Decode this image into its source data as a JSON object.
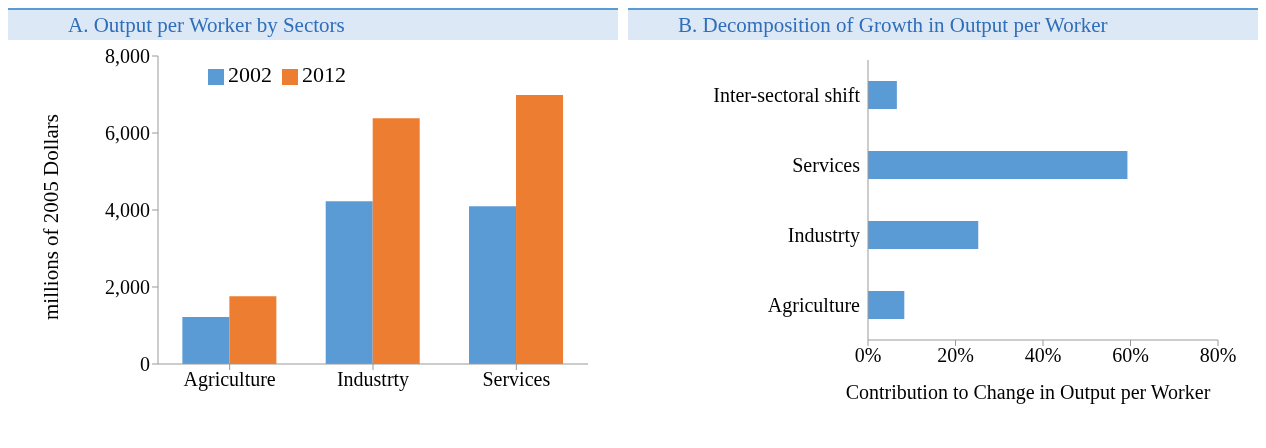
{
  "chart_data": [
    {
      "type": "bar",
      "title": "A.   Output per Worker by Sectors",
      "ylabel": "millions of 2005 Dollars",
      "categories": [
        "Agriculture",
        "Industrty",
        "Services"
      ],
      "series": [
        {
          "name": "2002",
          "color": "#5b9bd5",
          "values": [
            1220,
            4230,
            4100
          ]
        },
        {
          "name": "2012",
          "color": "#ed7d31",
          "values": [
            1760,
            6380,
            6990
          ]
        }
      ],
      "ylim": [
        0,
        8000
      ],
      "yticks": [
        0,
        {
          "value": 2000,
          "label": "2,000"
        },
        {
          "value": 4000,
          "label": "4,000"
        },
        {
          "value": 6000,
          "label": "6,000"
        },
        {
          "value": 8000,
          "label": "8,000"
        }
      ],
      "legend": "top left"
    },
    {
      "type": "bar",
      "orientation": "horizontal",
      "title": "B.   Decomposition of Growth in Output per Worker",
      "xlabel": "Contribution to  Change in Output per Worker",
      "categories": [
        "Inter-sectoral shift",
        "Services",
        "Industrty",
        "Agriculture"
      ],
      "values": [
        6.6,
        59.3,
        25.2,
        8.3
      ],
      "color": "#5b9bd5",
      "xlim": [
        0,
        80
      ],
      "xticks": [
        {
          "value": 0,
          "label": "0%"
        },
        {
          "value": 20,
          "label": "20%"
        },
        {
          "value": 40,
          "label": "40%"
        },
        {
          "value": 60,
          "label": "60%"
        },
        {
          "value": 80,
          "label": "80%"
        }
      ]
    }
  ]
}
